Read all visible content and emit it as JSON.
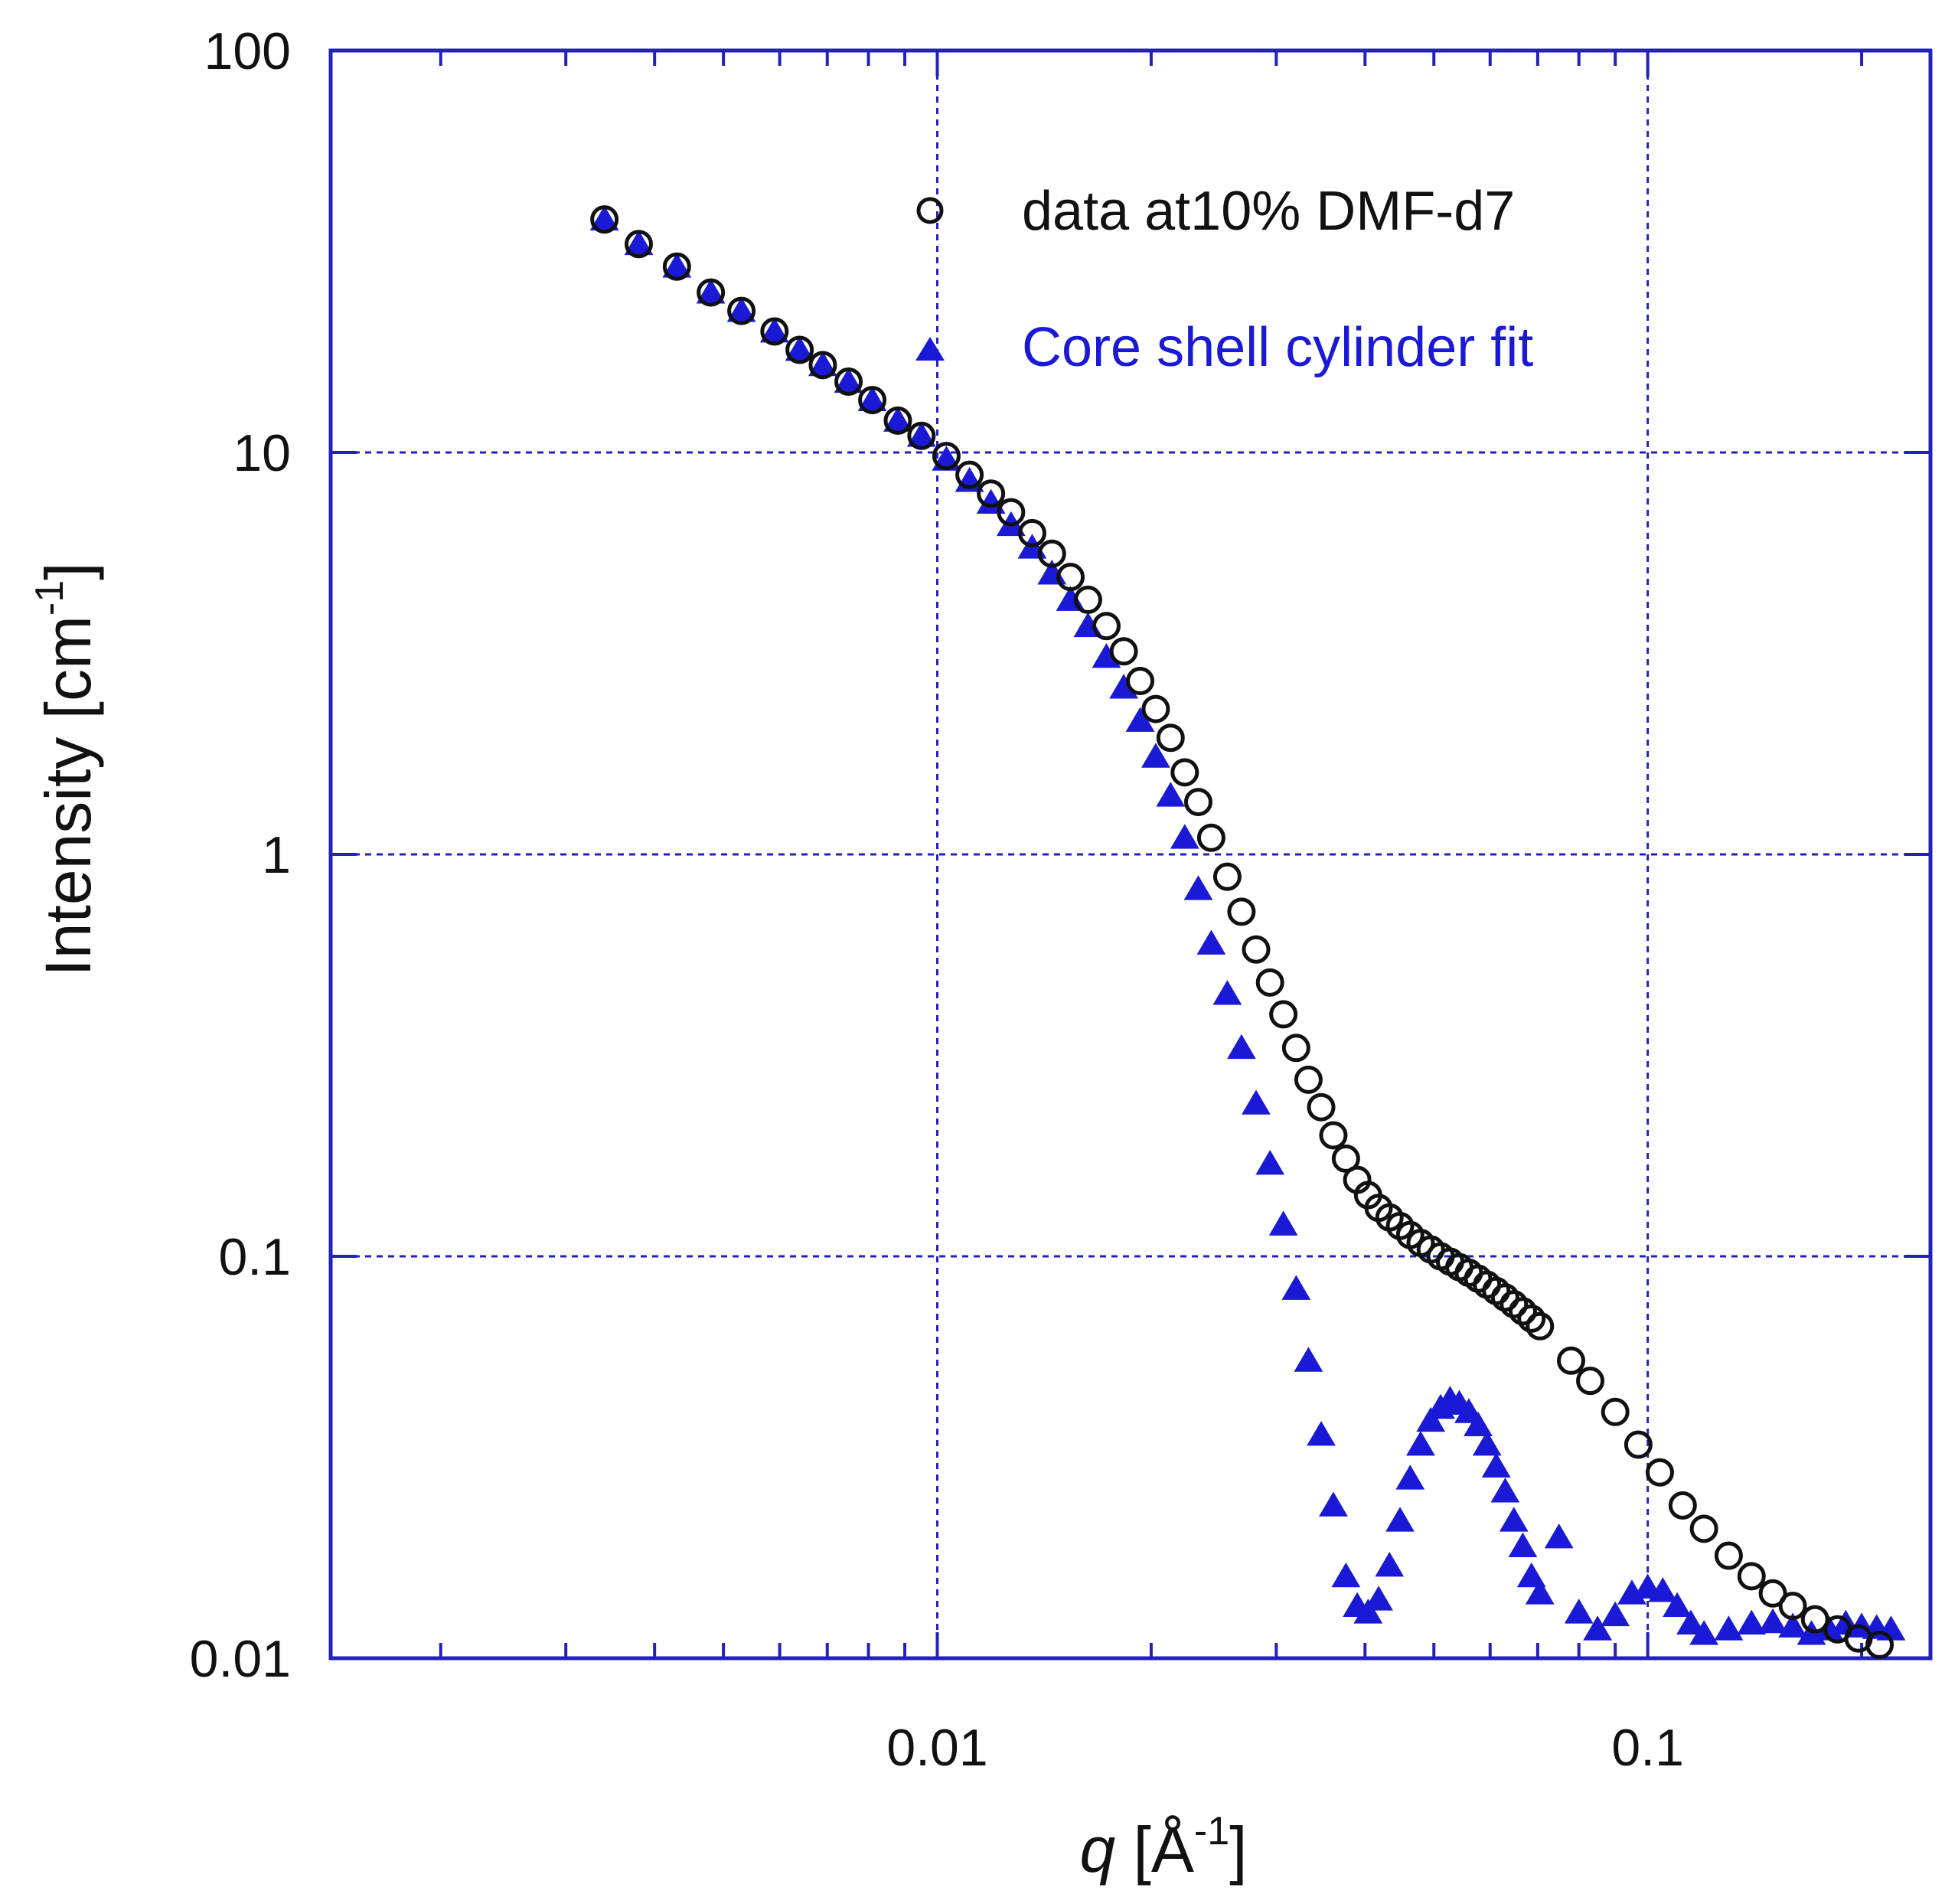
{
  "chart_data": {
    "type": "scatter",
    "xscale": "log",
    "yscale": "log",
    "xlim": [
      0.0014,
      0.25
    ],
    "ylim": [
      0.01,
      100
    ],
    "xticks": [
      {
        "value": 0.01,
        "label": "0.01"
      },
      {
        "value": 0.1,
        "label": "0.1"
      }
    ],
    "yticks": [
      {
        "value": 100,
        "label": "100"
      },
      {
        "value": 10,
        "label": "10"
      },
      {
        "value": 1,
        "label": "1"
      },
      {
        "value": 0.1,
        "label": "0.1"
      },
      {
        "value": 0.01,
        "label": "0.01"
      }
    ],
    "xlabel": {
      "var": "q",
      "text": " [Å",
      "sup": "-1",
      "close": "]"
    },
    "ylabel": {
      "text": "Intensity [cm",
      "sup": "-1",
      "close": "]"
    },
    "grid": true,
    "legend_position": "top-right",
    "colors": {
      "axis": "#2222bb",
      "grid": "#2222bb",
      "data": "#111111",
      "fit": "#1a1ad6"
    },
    "series": [
      {
        "name": "data at10% DMF-d7",
        "marker": "open-circle",
        "x": [
          0.0034,
          0.0038,
          0.0043,
          0.0048,
          0.0053,
          0.0059,
          0.0064,
          0.0069,
          0.0075,
          0.0081,
          0.0088,
          0.0095,
          0.0103,
          0.0111,
          0.0119,
          0.0127,
          0.0136,
          0.0145,
          0.0154,
          0.0163,
          0.0173,
          0.0183,
          0.0193,
          0.0203,
          0.0213,
          0.0223,
          0.0233,
          0.0243,
          0.0256,
          0.0268,
          0.0281,
          0.0294,
          0.0307,
          0.032,
          0.0333,
          0.0347,
          0.0361,
          0.0376,
          0.039,
          0.0404,
          0.0418,
          0.0433,
          0.0448,
          0.0463,
          0.0479,
          0.0495,
          0.0511,
          0.0527,
          0.0543,
          0.056,
          0.0577,
          0.0594,
          0.0612,
          0.063,
          0.0648,
          0.0667,
          0.0686,
          0.0705,
          0.078,
          0.083,
          0.09,
          0.097,
          0.104,
          0.112,
          0.12,
          0.13,
          0.14,
          0.15,
          0.16,
          0.172,
          0.185,
          0.198,
          0.212
        ],
        "y": [
          38,
          33,
          29,
          25,
          22.5,
          20,
          18,
          16.5,
          15,
          13.5,
          12,
          11,
          9.8,
          8.8,
          7.9,
          7.1,
          6.3,
          5.6,
          4.9,
          4.3,
          3.7,
          3.2,
          2.7,
          2.3,
          1.95,
          1.6,
          1.35,
          1.1,
          0.88,
          0.72,
          0.58,
          0.48,
          0.4,
          0.33,
          0.275,
          0.235,
          0.2,
          0.175,
          0.155,
          0.142,
          0.132,
          0.125,
          0.119,
          0.113,
          0.108,
          0.104,
          0.1,
          0.097,
          0.094,
          0.091,
          0.088,
          0.085,
          0.082,
          0.079,
          0.076,
          0.073,
          0.07,
          0.067,
          0.055,
          0.049,
          0.041,
          0.034,
          0.029,
          0.024,
          0.021,
          0.018,
          0.016,
          0.0145,
          0.0135,
          0.0125,
          0.0118,
          0.0112,
          0.0108
        ]
      },
      {
        "name": "Core shell cylinder fit",
        "marker": "filled-triangle",
        "x": [
          0.0034,
          0.0038,
          0.0043,
          0.0048,
          0.0053,
          0.0059,
          0.0064,
          0.0069,
          0.0075,
          0.0081,
          0.0088,
          0.0095,
          0.0103,
          0.0111,
          0.0119,
          0.0127,
          0.0136,
          0.0145,
          0.0154,
          0.0163,
          0.0173,
          0.0183,
          0.0193,
          0.0203,
          0.0213,
          0.0223,
          0.0233,
          0.0243,
          0.0256,
          0.0268,
          0.0281,
          0.0294,
          0.0307,
          0.032,
          0.0333,
          0.0347,
          0.0361,
          0.0376,
          0.039,
          0.0404,
          0.0418,
          0.0433,
          0.0448,
          0.0463,
          0.0479,
          0.0495,
          0.0511,
          0.0527,
          0.0543,
          0.056,
          0.0577,
          0.0594,
          0.0612,
          0.063,
          0.0648,
          0.0667,
          0.0686,
          0.0705,
          0.075,
          0.08,
          0.085,
          0.09,
          0.095,
          0.1,
          0.105,
          0.11,
          0.115,
          0.12,
          0.13,
          0.14,
          0.15,
          0.16,
          0.17,
          0.18,
          0.19,
          0.2,
          0.21,
          0.22
        ],
        "y": [
          38,
          33,
          29,
          25,
          22.5,
          20,
          18,
          16.5,
          15,
          13.5,
          12,
          11,
          9.6,
          8.5,
          7.5,
          6.6,
          5.8,
          5.0,
          4.3,
          3.7,
          3.1,
          2.6,
          2.15,
          1.75,
          1.4,
          1.1,
          0.82,
          0.6,
          0.45,
          0.33,
          0.24,
          0.17,
          0.12,
          0.083,
          0.055,
          0.036,
          0.024,
          0.016,
          0.0135,
          0.013,
          0.014,
          0.017,
          0.022,
          0.028,
          0.034,
          0.039,
          0.042,
          0.044,
          0.043,
          0.041,
          0.038,
          0.034,
          0.03,
          0.026,
          0.022,
          0.019,
          0.016,
          0.0145,
          0.02,
          0.013,
          0.0118,
          0.0128,
          0.0145,
          0.015,
          0.0147,
          0.0135,
          0.0122,
          0.0115,
          0.0118,
          0.0122,
          0.0123,
          0.012,
          0.0115,
          0.0118,
          0.0122,
          0.012,
          0.0119,
          0.0118
        ]
      }
    ]
  }
}
